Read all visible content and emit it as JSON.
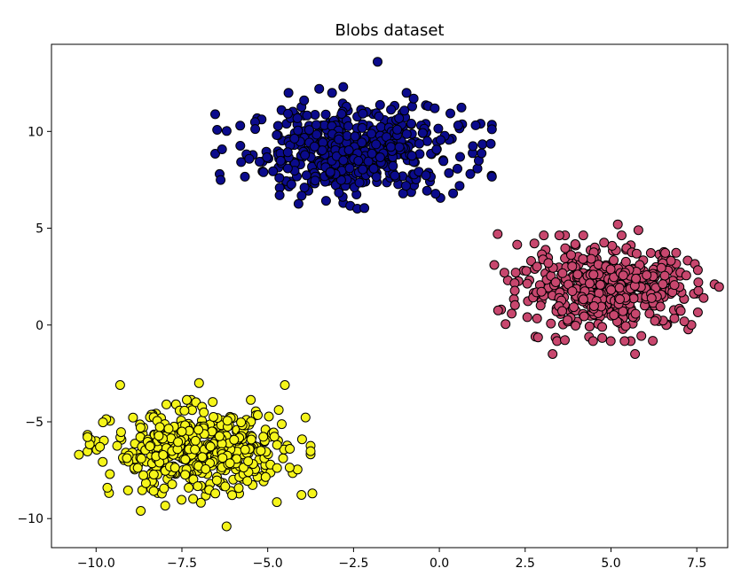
{
  "chart_data": {
    "type": "scatter",
    "title": "Blobs dataset",
    "xlabel": "",
    "ylabel": "",
    "xlim": [
      -11.3,
      8.4
    ],
    "ylim": [
      -11.5,
      14.5
    ],
    "grid": false,
    "legend": "none",
    "x_ticks": [
      -10.0,
      -7.5,
      -5.0,
      -2.5,
      0.0,
      2.5,
      5.0,
      7.5
    ],
    "x_tick_labels": [
      "−10.0",
      "−7.5",
      "−5.0",
      "−2.5",
      "0.0",
      "2.5",
      "5.0",
      "7.5"
    ],
    "y_ticks": [
      -10,
      -5,
      0,
      5,
      10
    ],
    "y_tick_labels": [
      "−10",
      "−5",
      "0",
      "5",
      "10"
    ],
    "marker_edge_color": "#000000",
    "series": [
      {
        "color": "#0b0b8c",
        "count": 500,
        "center": [
          -2.5,
          9.0
        ],
        "std": [
          1.55,
          1.15
        ],
        "points": [
          [
            -1.8,
            13.6
          ],
          [
            1.2,
            10.4
          ],
          [
            -6.4,
            7.8
          ],
          [
            -3.5,
            12.2
          ],
          [
            -2.8,
            12.3
          ],
          [
            0.4,
            6.8
          ],
          [
            -4.6,
            11.1
          ],
          [
            -5.8,
            10.3
          ],
          [
            -0.1,
            9.0
          ],
          [
            -2.8,
            6.3
          ]
        ]
      },
      {
        "color": "#c8476e",
        "count": 500,
        "center": [
          4.9,
          1.9
        ],
        "std": [
          1.25,
          1.05
        ],
        "points": [
          [
            1.7,
            4.7
          ],
          [
            1.8,
            0.8
          ],
          [
            1.6,
            3.1
          ],
          [
            3.3,
            -1.5
          ],
          [
            5.7,
            -1.5
          ],
          [
            7.7,
            1.4
          ],
          [
            5.2,
            5.2
          ],
          [
            6.9,
            0.7
          ],
          [
            2.8,
            -0.6
          ],
          [
            5.8,
            4.9
          ]
        ]
      },
      {
        "color": "#f5f51a",
        "count": 500,
        "center": [
          -7.0,
          -6.6
        ],
        "std": [
          1.25,
          1.05
        ],
        "points": [
          [
            -10.5,
            -6.7
          ],
          [
            -9.3,
            -3.1
          ],
          [
            -7.0,
            -3.0
          ],
          [
            -4.5,
            -3.1
          ],
          [
            -3.7,
            -8.7
          ],
          [
            -6.2,
            -10.4
          ],
          [
            -8.7,
            -9.6
          ],
          [
            -10.0,
            -6.0
          ],
          [
            -4.0,
            -5.9
          ],
          [
            -9.6,
            -7.7
          ]
        ]
      }
    ]
  }
}
